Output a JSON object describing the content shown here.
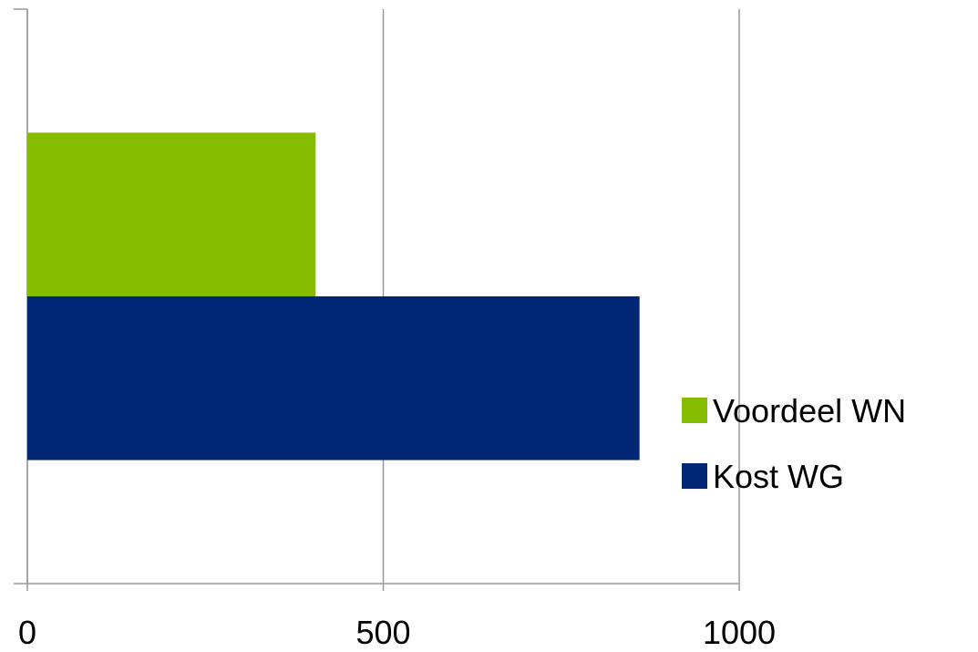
{
  "chart_data": {
    "type": "bar",
    "orientation": "horizontal",
    "categories": [
      null
    ],
    "series": [
      {
        "name": "Voordeel WN",
        "color": "#86bc00",
        "values": [
          405
        ]
      },
      {
        "name": "Kost WG",
        "color": "#002776",
        "values": [
          860
        ]
      }
    ],
    "xlim": [
      0,
      1000
    ],
    "xticks": [
      0,
      500,
      1000
    ],
    "grid": true,
    "legend": "right"
  }
}
